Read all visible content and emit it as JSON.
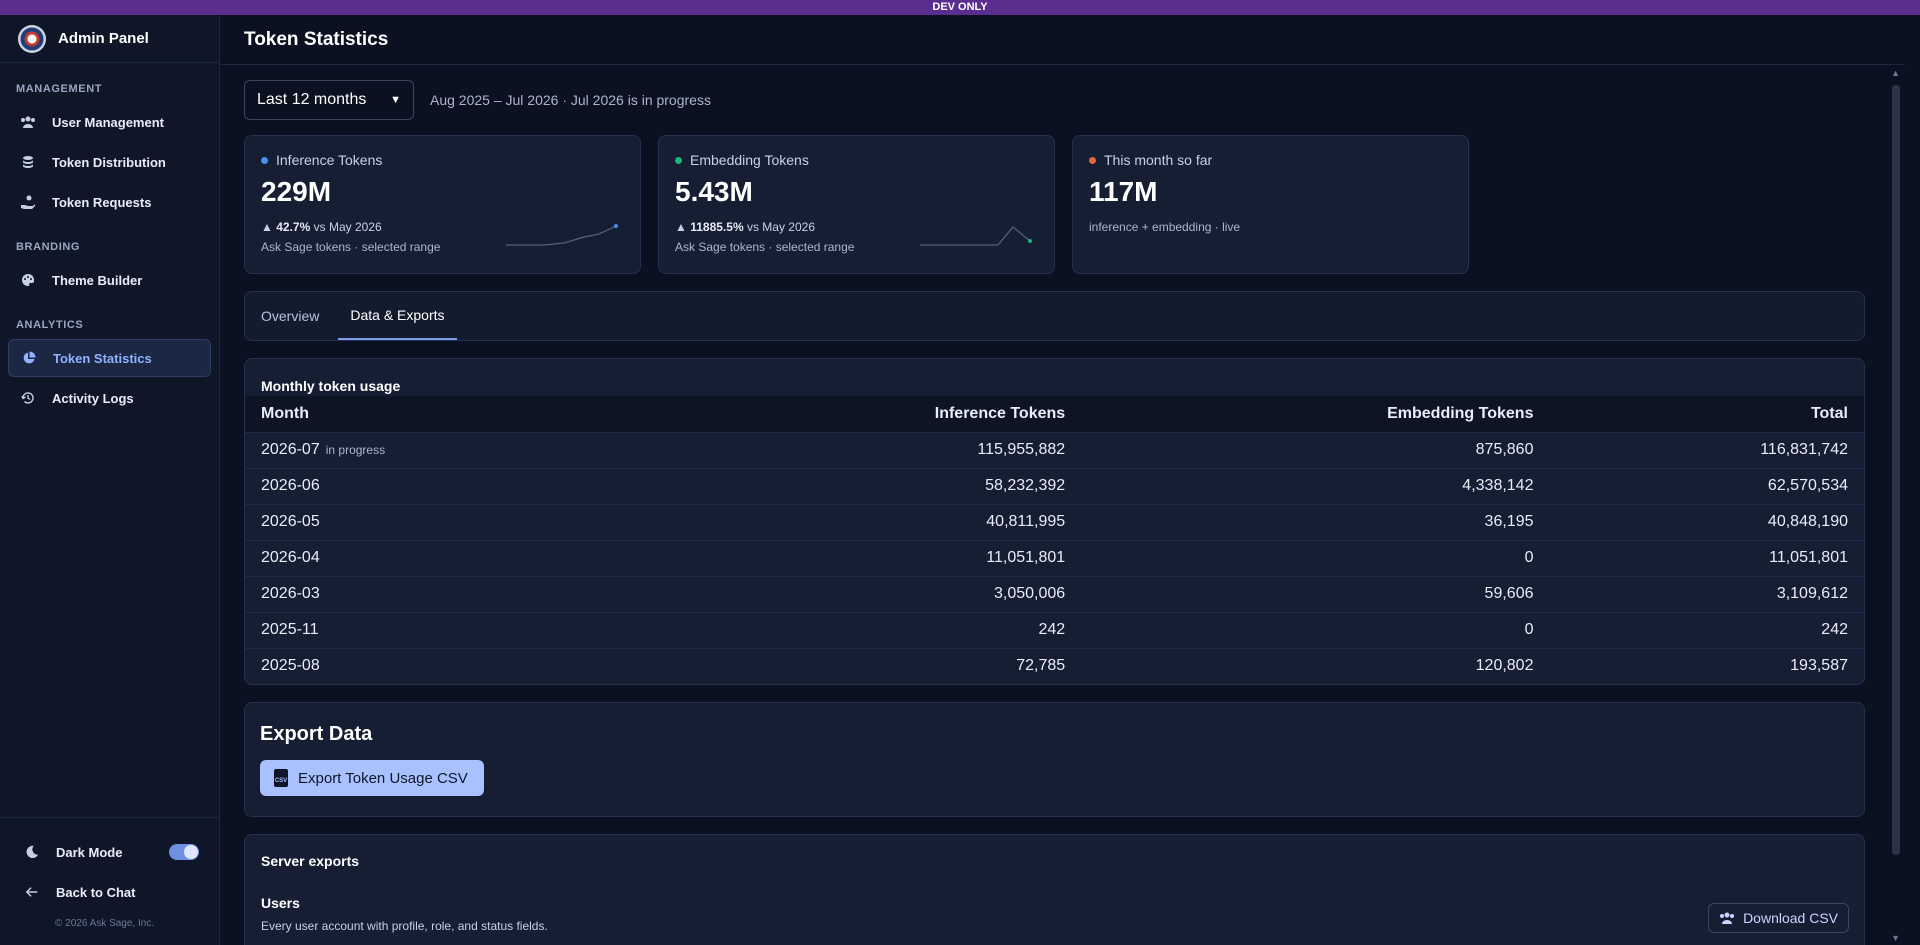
{
  "dev_banner": "DEV ONLY",
  "sidebar": {
    "title": "Admin Panel",
    "sections": [
      {
        "label": "MANAGEMENT",
        "items": [
          {
            "label": "User Management",
            "icon": "users-icon"
          },
          {
            "label": "Token Distribution",
            "icon": "coins-icon"
          },
          {
            "label": "Token Requests",
            "icon": "hand-coin-icon"
          }
        ]
      },
      {
        "label": "BRANDING",
        "items": [
          {
            "label": "Theme Builder",
            "icon": "palette-icon"
          }
        ]
      },
      {
        "label": "ANALYTICS",
        "items": [
          {
            "label": "Token Statistics",
            "icon": "pie-chart-icon",
            "active": true
          },
          {
            "label": "Activity Logs",
            "icon": "history-icon"
          }
        ]
      }
    ],
    "footer": {
      "dark_mode_label": "Dark Mode",
      "dark_mode_on": true,
      "back_label": "Back to Chat",
      "copyright": "© 2026 Ask Sage, Inc."
    }
  },
  "header": {
    "title": "Token Statistics"
  },
  "filter": {
    "range_value": "Last 12 months",
    "range_text": "Aug 2025 – Jul 2026 · Jul 2026 is in progress"
  },
  "cards": [
    {
      "label": "Inference Tokens",
      "dot_color": "#4a8ff0",
      "value": "229M",
      "delta": "42.7%",
      "delta_suffix": "vs May 2026",
      "sub": "Ask Sage tokens · selected range"
    },
    {
      "label": "Embedding Tokens",
      "dot_color": "#1fb37a",
      "value": "5.43M",
      "delta": "11885.5%",
      "delta_suffix": "vs May 2026",
      "sub": "Ask Sage tokens · selected range"
    },
    {
      "label": "This month so far",
      "dot_color": "#e8643a",
      "value": "117M",
      "sub": "inference + embedding · live"
    }
  ],
  "tabs": [
    {
      "label": "Overview",
      "active": false
    },
    {
      "label": "Data & Exports",
      "active": true
    }
  ],
  "table": {
    "title": "Monthly token usage",
    "columns": [
      "Month",
      "Inference Tokens",
      "Embedding Tokens",
      "Total"
    ],
    "in_progress_label": "in progress",
    "rows": [
      {
        "month": "2026-07",
        "inference": "115,955,882",
        "embedding": "875,860",
        "total": "116,831,742",
        "in_progress": true
      },
      {
        "month": "2026-06",
        "inference": "58,232,392",
        "embedding": "4,338,142",
        "total": "62,570,534"
      },
      {
        "month": "2026-05",
        "inference": "40,811,995",
        "embedding": "36,195",
        "total": "40,848,190"
      },
      {
        "month": "2026-04",
        "inference": "11,051,801",
        "embedding": "0",
        "total": "11,051,801"
      },
      {
        "month": "2026-03",
        "inference": "3,050,006",
        "embedding": "59,606",
        "total": "3,109,612"
      },
      {
        "month": "2025-11",
        "inference": "242",
        "embedding": "0",
        "total": "242"
      },
      {
        "month": "2025-08",
        "inference": "72,785",
        "embedding": "120,802",
        "total": "193,587"
      }
    ]
  },
  "export": {
    "title": "Export Data",
    "button_label": "Export Token Usage CSV",
    "icon_text": "CSV"
  },
  "server_exports": {
    "title": "Server exports",
    "users_title": "Users",
    "users_desc": "Every user account with profile, role, and status fields.",
    "download_label": "Download CSV"
  }
}
